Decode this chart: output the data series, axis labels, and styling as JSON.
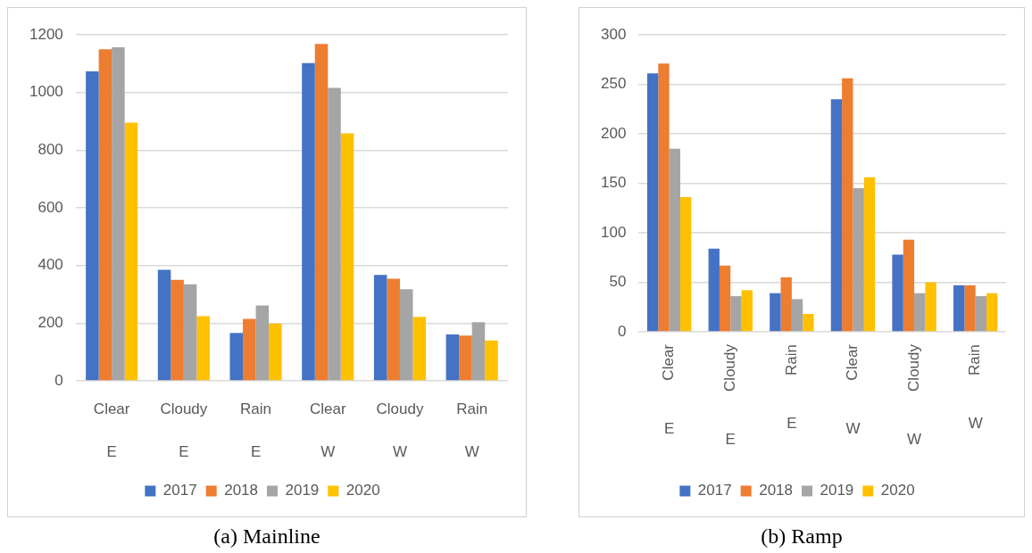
{
  "chart_data": [
    {
      "type": "bar",
      "categories": [
        "Clear\nE",
        "Cloudy\nE",
        "Rain\nE",
        "Clear\nW",
        "Cloudy\nW",
        "Rain\nW"
      ],
      "series": [
        {
          "name": "2017",
          "color": "#4472c4",
          "values": [
            1073,
            385,
            166,
            1102,
            367,
            161
          ]
        },
        {
          "name": "2018",
          "color": "#ed7d31",
          "values": [
            1150,
            350,
            215,
            1168,
            354,
            157
          ]
        },
        {
          "name": "2019",
          "color": "#a5a5a5",
          "values": [
            1157,
            335,
            261,
            1016,
            318,
            203
          ]
        },
        {
          "name": "2020",
          "color": "#ffc000",
          "values": [
            895,
            224,
            199,
            858,
            222,
            140
          ]
        }
      ],
      "ylim": [
        0,
        1200
      ],
      "yticks": [
        0,
        200,
        400,
        600,
        800,
        1000,
        1200
      ],
      "grid": "y",
      "legend": "bottom",
      "annotations": [
        "(a) Mainline"
      ]
    },
    {
      "type": "bar",
      "categories": [
        "Clear\nE",
        "Cloudy\nE",
        "Rain\nE",
        "Clear\nW",
        "Cloudy\nW",
        "Rain\nW"
      ],
      "series": [
        {
          "name": "2017",
          "color": "#4472c4",
          "values": [
            261,
            84,
            39,
            235,
            78,
            47
          ]
        },
        {
          "name": "2018",
          "color": "#ed7d31",
          "values": [
            271,
            67,
            55,
            256,
            93,
            47
          ]
        },
        {
          "name": "2019",
          "color": "#a5a5a5",
          "values": [
            185,
            36,
            33,
            145,
            39,
            36
          ]
        },
        {
          "name": "2020",
          "color": "#ffc000",
          "values": [
            136,
            42,
            18,
            156,
            50,
            39
          ]
        }
      ],
      "ylim": [
        0,
        300
      ],
      "yticks": [
        0,
        50,
        100,
        150,
        200,
        250,
        300
      ],
      "grid": "y",
      "legend": "bottom",
      "annotations": [
        "(b) Ramp"
      ]
    }
  ]
}
